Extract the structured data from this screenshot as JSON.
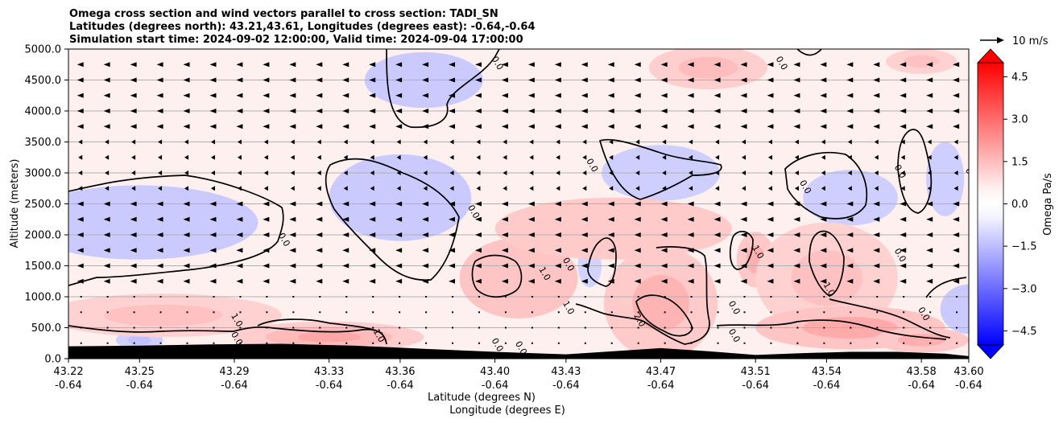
{
  "chart_data": {
    "type": "heatmap",
    "title_lines": [
      "Omega cross section and wind vectors parallel to cross section: TADI_SN",
      "Latitudes (degrees north): 43.21,43.61, Longitudes (degrees east): -0.64,-0.64",
      "Simulation start time: 2024-09-02 12:00:00, Valid time: 2024-09-04 17:00:00"
    ],
    "ylabel": "Altitude (meters)",
    "xlabel": "Latitude (degrees N)",
    "xlabel2": "Longitude (degrees E)",
    "ylim": [
      0,
      5000
    ],
    "y_ticks": [
      "0.0",
      "500.0",
      "1000.0",
      "1500.0",
      "2000.0",
      "2500.0",
      "3000.0",
      "3500.0",
      "4000.0",
      "4500.0",
      "5000.0"
    ],
    "x_ticks": [
      {
        "lat": "43.22",
        "lon": "-0.64"
      },
      {
        "lat": "43.25",
        "lon": "-0.64"
      },
      {
        "lat": "43.29",
        "lon": "-0.64"
      },
      {
        "lat": "43.33",
        "lon": "-0.64"
      },
      {
        "lat": "43.36",
        "lon": "-0.64"
      },
      {
        "lat": "43.40",
        "lon": "-0.64"
      },
      {
        "lat": "43.43",
        "lon": "-0.64"
      },
      {
        "lat": "43.47",
        "lon": "-0.64"
      },
      {
        "lat": "43.51",
        "lon": "-0.64"
      },
      {
        "lat": "43.54",
        "lon": "-0.64"
      },
      {
        "lat": "43.58",
        "lon": "-0.64"
      },
      {
        "lat": "43.60",
        "lon": "-0.64"
      }
    ],
    "grid": "horizontal",
    "colorbar": {
      "label": "Omega Pa/s",
      "range": [
        -5.0,
        5.0
      ],
      "ticks": [
        "4.5",
        "3.0",
        "1.5",
        "0.0",
        "−1.5",
        "−3.0",
        "−4.5"
      ],
      "colors": {
        "negative": "#0000ff",
        "neutral": "#ffffff",
        "positive": "#ff0000"
      },
      "extend": "both"
    },
    "wind_reference": {
      "label": "10 m/s"
    },
    "contour_labels": [
      {
        "text": "0.0",
        "lat": 43.4,
        "alt": 4750
      },
      {
        "text": "0.0",
        "lat": 43.52,
        "alt": 4750
      },
      {
        "text": "0.0",
        "lat": 43.44,
        "alt": 3100
      },
      {
        "text": "0.0",
        "lat": 43.53,
        "alt": 2750
      },
      {
        "text": "0.0",
        "lat": 43.57,
        "alt": 3000
      },
      {
        "text": "0.0",
        "lat": 43.6,
        "alt": 2950
      },
      {
        "text": "0.0",
        "lat": 43.39,
        "alt": 2350
      },
      {
        "text": "0.0",
        "lat": 43.31,
        "alt": 1900
      },
      {
        "text": "0.0",
        "lat": 43.43,
        "alt": 1500
      },
      {
        "text": "0.0",
        "lat": 43.57,
        "alt": 1650
      },
      {
        "text": "0.0",
        "lat": 43.58,
        "alt": 700
      },
      {
        "text": "0.0",
        "lat": 43.5,
        "alt": 800
      },
      {
        "text": "0.0",
        "lat": 43.5,
        "alt": 350
      },
      {
        "text": "0.0",
        "lat": 43.29,
        "alt": 300
      },
      {
        "text": "0.0",
        "lat": 43.4,
        "alt": 200
      },
      {
        "text": "0.0",
        "lat": 43.41,
        "alt": 150
      },
      {
        "text": "1.0",
        "lat": 43.29,
        "alt": 600
      },
      {
        "text": "1.0",
        "lat": 43.35,
        "alt": 350
      },
      {
        "text": "1.0",
        "lat": 43.42,
        "alt": 1350
      },
      {
        "text": "1.0",
        "lat": 43.43,
        "alt": 800
      },
      {
        "text": "1.0",
        "lat": 43.51,
        "alt": 1700
      },
      {
        "text": "1.0",
        "lat": 43.54,
        "alt": 1100
      },
      {
        "text": "2.0",
        "lat": 43.46,
        "alt": 600
      }
    ],
    "omega_blobs": [
      {
        "lat": 43.37,
        "alt": 4500,
        "rx": 0.025,
        "ry": 450,
        "v": -0.5
      },
      {
        "lat": 43.25,
        "alt": 2200,
        "rx": 0.05,
        "ry": 600,
        "v": -0.5
      },
      {
        "lat": 43.36,
        "alt": 2600,
        "rx": 0.03,
        "ry": 700,
        "v": -0.5
      },
      {
        "lat": 43.47,
        "alt": 3000,
        "rx": 0.025,
        "ry": 450,
        "v": -0.4
      },
      {
        "lat": 43.55,
        "alt": 2600,
        "rx": 0.02,
        "ry": 450,
        "v": -0.4
      },
      {
        "lat": 43.59,
        "alt": 2900,
        "rx": 0.008,
        "ry": 600,
        "v": -0.4
      },
      {
        "lat": 43.44,
        "alt": 1500,
        "rx": 0.005,
        "ry": 350,
        "v": -0.3
      },
      {
        "lat": 43.25,
        "alt": 300,
        "rx": 0.01,
        "ry": 150,
        "v": -0.7
      },
      {
        "lat": 43.6,
        "alt": 800,
        "rx": 0.012,
        "ry": 400,
        "v": -0.5
      },
      {
        "lat": 43.49,
        "alt": 4700,
        "rx": 0.025,
        "ry": 350,
        "v": 0.8
      },
      {
        "lat": 43.58,
        "alt": 4800,
        "rx": 0.015,
        "ry": 200,
        "v": 0.7
      },
      {
        "lat": 43.47,
        "alt": 700,
        "rx": 0.018,
        "ry": 450,
        "v": 2.6
      },
      {
        "lat": 43.47,
        "alt": 900,
        "rx": 0.024,
        "ry": 900,
        "v": 1.0
      },
      {
        "lat": 43.41,
        "alt": 1300,
        "rx": 0.014,
        "ry": 400,
        "v": 1.5
      },
      {
        "lat": 43.41,
        "alt": 1300,
        "rx": 0.025,
        "ry": 650,
        "v": 0.6
      },
      {
        "lat": 43.51,
        "alt": 1600,
        "rx": 0.008,
        "ry": 450,
        "v": 1.1
      },
      {
        "lat": 43.54,
        "alt": 1550,
        "rx": 0.01,
        "ry": 500,
        "v": 1.6
      },
      {
        "lat": 43.54,
        "alt": 1300,
        "rx": 0.03,
        "ry": 900,
        "v": 0.7
      },
      {
        "lat": 43.33,
        "alt": 350,
        "rx": 0.04,
        "ry": 250,
        "v": 1.3
      },
      {
        "lat": 43.26,
        "alt": 700,
        "rx": 0.05,
        "ry": 350,
        "v": 0.7
      },
      {
        "lat": 43.55,
        "alt": 500,
        "rx": 0.04,
        "ry": 350,
        "v": 1.2
      },
      {
        "lat": 43.58,
        "alt": 300,
        "rx": 0.02,
        "ry": 200,
        "v": 1.1
      },
      {
        "lat": 43.45,
        "alt": 2100,
        "rx": 0.05,
        "ry": 500,
        "v": 0.5
      }
    ]
  }
}
